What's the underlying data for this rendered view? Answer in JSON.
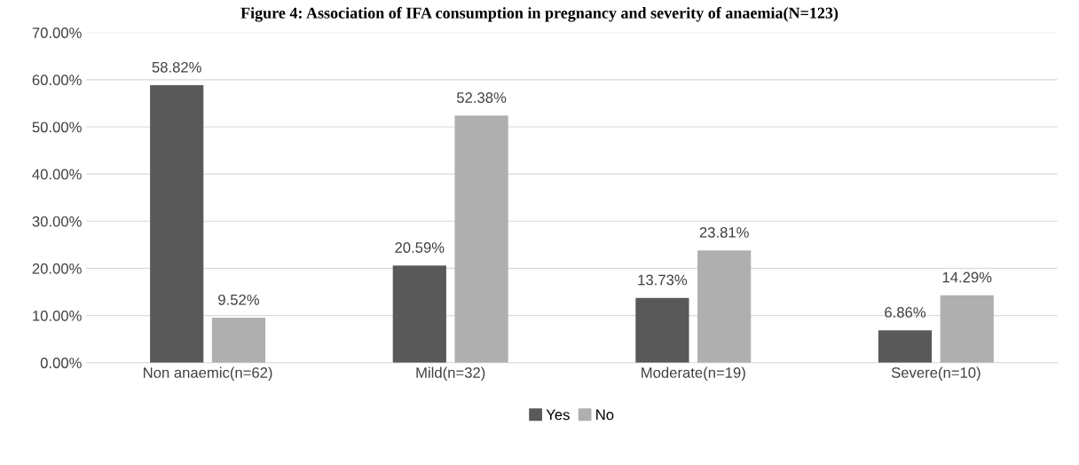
{
  "chart_data": {
    "type": "bar",
    "title": "Figure 4: Association of IFA consumption in pregnancy and severity of anaemia(N=123)",
    "categories": [
      "Non anaemic(n=62)",
      "Mild(n=32)",
      "Moderate(n=19)",
      "Severe(n=10)"
    ],
    "series": [
      {
        "name": "Yes",
        "color": "#595959",
        "values": [
          58.82,
          20.59,
          13.73,
          6.86
        ],
        "value_labels": [
          "58.82%",
          "20.59%",
          "13.73%",
          "6.86%"
        ]
      },
      {
        "name": "No",
        "color": "#afafaf",
        "values": [
          9.52,
          52.38,
          23.81,
          14.29
        ],
        "value_labels": [
          "9.52%",
          "52.38%",
          "23.81%",
          "14.29%"
        ]
      }
    ],
    "ylim": [
      0,
      70
    ],
    "yticks": [
      {
        "value": 0,
        "label": "0.00%"
      },
      {
        "value": 10,
        "label": "10.00%"
      },
      {
        "value": 20,
        "label": "20.00%"
      },
      {
        "value": 30,
        "label": "30.00%"
      },
      {
        "value": 40,
        "label": "40.00%"
      },
      {
        "value": 50,
        "label": "50.00%"
      },
      {
        "value": 60,
        "label": "60.00%"
      },
      {
        "value": 70,
        "label": "70.00%"
      }
    ],
    "grid": "y",
    "legend": "bottom"
  }
}
